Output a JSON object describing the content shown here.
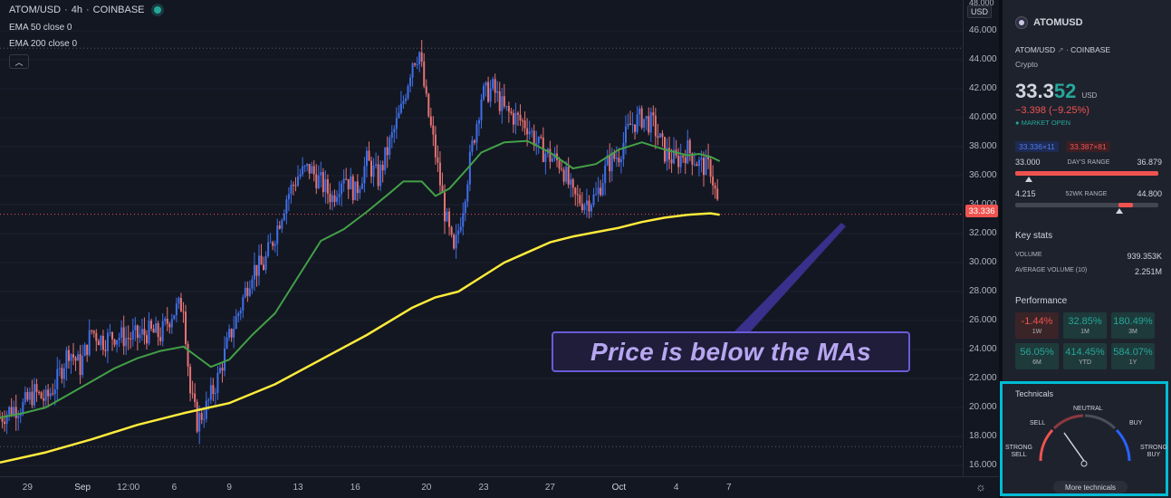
{
  "legend": {
    "symbol": "ATOM/USD",
    "interval": "4h",
    "exchange": "COINBASE",
    "ema50": "EMA 50 close 0",
    "ema200": "EMA 200 close 0"
  },
  "price_axis": {
    "currency_button": "USD",
    "top_label": "48.000",
    "ticks": [
      "46.000",
      "44.000",
      "42.000",
      "40.000",
      "38.000",
      "36.000",
      "34.000",
      "32.000",
      "30.000",
      "28.000",
      "26.000",
      "24.000",
      "22.000",
      "20.000",
      "18.000",
      "16.000"
    ],
    "last_price_tag": "33.336"
  },
  "time_axis": {
    "ticks": [
      "29",
      "Sep",
      "12:00",
      "6",
      "9",
      "13",
      "16",
      "20",
      "23",
      "27",
      "Oct",
      "4",
      "7"
    ]
  },
  "annotation": "Price is below the MAs",
  "panel": {
    "symbol": "ATOMUSD",
    "pair": "ATOM/USD",
    "exchange": "COINBASE",
    "type": "Crypto",
    "price_main": "33.3",
    "price_hi": "52",
    "currency": "USD",
    "change": "−3.398 (−9.25%)",
    "market_status": "MARKET OPEN",
    "bid": "33.336×11",
    "ask": "33.387×81",
    "day_low": "33.000",
    "day_range_label": "DAY'S RANGE",
    "day_high": "36.879",
    "wk_low": "4.215",
    "wk_range_label": "52WK RANGE",
    "wk_high": "44.800",
    "key_stats_title": "Key stats",
    "volume_label": "VOLUME",
    "volume": "939.353K",
    "avg_volume_label": "AVERAGE VOLUME (10)",
    "avg_volume": "2.251M",
    "performance_title": "Performance",
    "performance": [
      {
        "value": "-1.44%",
        "label": "1W",
        "trend": "down"
      },
      {
        "value": "32.85%",
        "label": "1M",
        "trend": "up"
      },
      {
        "value": "180.49%",
        "label": "3M",
        "trend": "up"
      },
      {
        "value": "56.05%",
        "label": "6M",
        "trend": "up"
      },
      {
        "value": "414.45%",
        "label": "YTD",
        "trend": "up"
      },
      {
        "value": "584.07%",
        "label": "1Y",
        "trend": "up"
      }
    ],
    "technicals_title": "Technicals",
    "gauge_labels": {
      "strong_sell": "STRONG SELL",
      "sell": "SELL",
      "neutral": "NEUTRAL",
      "buy": "BUY",
      "strong_buy": "STRONG BUY"
    },
    "more_technicals": "More technicals"
  },
  "chart_data": {
    "type": "line",
    "ylim": [
      15,
      48
    ],
    "x_range": [
      0,
      42
    ],
    "last_price": 33.336,
    "x_ticks": [
      {
        "label": "29",
        "x": 1.2
      },
      {
        "label": "Sep",
        "x": 3.6
      },
      {
        "label": "12:00",
        "x": 5.6
      },
      {
        "label": "6",
        "x": 7.6
      },
      {
        "label": "9",
        "x": 10.0
      },
      {
        "label": "13",
        "x": 13.0
      },
      {
        "label": "16",
        "x": 15.5
      },
      {
        "label": "20",
        "x": 18.6
      },
      {
        "label": "23",
        "x": 21.1
      },
      {
        "label": "27",
        "x": 24.0
      },
      {
        "label": "Oct",
        "x": 27.0
      },
      {
        "label": "4",
        "x": 29.5
      },
      {
        "label": "7",
        "x": 31.8
      }
    ],
    "series": [
      {
        "name": "EMA 50",
        "color": "#43a047",
        "x": [
          0,
          1,
          2,
          3,
          4,
          5,
          6,
          7,
          8,
          8.6,
          9.2,
          10,
          11,
          12,
          13,
          14,
          15,
          16,
          17,
          17.6,
          18.4,
          19,
          19.6,
          20.4,
          21,
          22,
          23,
          24,
          25,
          26,
          27,
          28,
          29,
          30,
          30.5,
          31,
          31.4
        ],
        "y": [
          19.3,
          19.6,
          20.0,
          20.9,
          21.8,
          22.7,
          23.4,
          23.9,
          24.2,
          23.5,
          22.8,
          23.3,
          25.0,
          26.5,
          29.0,
          31.5,
          32.3,
          33.5,
          34.8,
          35.6,
          35.6,
          34.6,
          35.1,
          36.5,
          37.6,
          38.3,
          38.4,
          37.6,
          36.5,
          36.8,
          37.8,
          38.3,
          37.8,
          37.4,
          37.5,
          37.3,
          37.0
        ]
      },
      {
        "name": "EMA 200",
        "color": "#ffeb3b",
        "x": [
          0,
          2,
          4,
          6,
          8,
          10,
          12,
          14,
          16,
          18,
          19,
          20,
          21,
          22,
          23,
          24,
          25,
          26,
          27,
          28,
          29,
          30,
          31,
          31.4
        ],
        "y": [
          16.2,
          16.9,
          17.8,
          18.8,
          19.6,
          20.3,
          21.6,
          23.3,
          25.0,
          26.9,
          27.6,
          28.0,
          29.0,
          30.0,
          30.7,
          31.4,
          31.8,
          32.1,
          32.4,
          32.8,
          33.1,
          33.3,
          33.4,
          33.3
        ]
      },
      {
        "name": "Price",
        "color": "#5b8ff9",
        "x": [
          0,
          0.5,
          1,
          1.5,
          2,
          2.5,
          3,
          3.5,
          4,
          4.5,
          5,
          5.5,
          6,
          6.5,
          7,
          7.5,
          8,
          8.3,
          8.6,
          9,
          9.5,
          10,
          10.5,
          11,
          11.5,
          12,
          12.5,
          13,
          13.5,
          14,
          14.5,
          15,
          15.5,
          16,
          16.5,
          17,
          17.5,
          18,
          18.3,
          18.6,
          19,
          19.4,
          19.8,
          20.2,
          20.6,
          21,
          21.5,
          22,
          22.5,
          23,
          23.5,
          24,
          24.5,
          25,
          25.5,
          26,
          26.5,
          27,
          27.5,
          28,
          28.5,
          29,
          29.5,
          30,
          30.5,
          31,
          31.4
        ],
        "y": [
          19.3,
          19.9,
          20.1,
          21.0,
          20.5,
          21.9,
          24.0,
          22.8,
          25.3,
          24.6,
          25.0,
          24.8,
          24.9,
          25.2,
          25.0,
          26.5,
          27.2,
          21.0,
          19.0,
          20.0,
          22.0,
          24.8,
          27.0,
          29.5,
          29.8,
          32.0,
          34.5,
          36.0,
          36.5,
          35.5,
          34.5,
          36.2,
          34.8,
          37.0,
          35.8,
          38.2,
          40.5,
          44.0,
          44.5,
          41.0,
          37.5,
          33.5,
          30.5,
          34.0,
          38.0,
          41.5,
          42.0,
          40.5,
          40.0,
          39.5,
          38.0,
          37.3,
          36.8,
          34.5,
          34.2,
          34.5,
          36.8,
          37.5,
          39.5,
          40.0,
          39.5,
          37.6,
          37.0,
          37.8,
          36.8,
          36.5,
          33.3
        ]
      }
    ]
  }
}
